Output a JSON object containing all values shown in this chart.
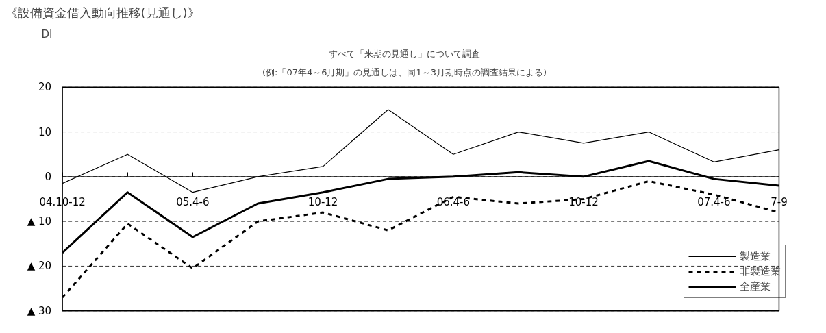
{
  "chart_data": {
    "type": "line",
    "title": "《設備資金借入動向推移(見通し)》",
    "subtitle": "すべて「来期の見通し」について調査",
    "annotations": [
      "(例:「07年4～6月期」の見通しは、同1～3月期時点の調査結果による)"
    ],
    "ylabel": "DI",
    "categories": [
      "04.10-12",
      null,
      "05.4-6",
      null,
      "10-12",
      null,
      "06.4-6",
      null,
      "10-12",
      null,
      "07.4-6",
      "7-9"
    ],
    "series": [
      {
        "name": "製造業",
        "color": "#000000",
        "line_style": "solid",
        "values": [
          -1.5,
          5,
          -3.5,
          0,
          2.3,
          15,
          5,
          10,
          7.5,
          10,
          3.3,
          6
        ]
      },
      {
        "name": "非製造業",
        "color": "#000000",
        "line_style": "dashed",
        "values": [
          -27,
          -10.5,
          -20.5,
          -10,
          -8,
          -12,
          -4.5,
          -6,
          -5,
          -1,
          -4,
          -8
        ]
      },
      {
        "name": "全産業",
        "color": "#000000",
        "line_style": "solid",
        "values": [
          -17,
          -3.5,
          -13.5,
          -6,
          -3.5,
          -0.5,
          0,
          1,
          0,
          3.5,
          -0.5,
          -2
        ]
      }
    ],
    "ylim": [
      -30,
      20
    ],
    "yticks": [
      20,
      10,
      0,
      {
        "value": -10,
        "label": "▲ 10"
      },
      {
        "value": -20,
        "label": "▲ 20"
      },
      {
        "value": -30,
        "label": "▲ 30"
      }
    ],
    "grid": "y",
    "legend": "bottom right",
    "marker": "none"
  }
}
